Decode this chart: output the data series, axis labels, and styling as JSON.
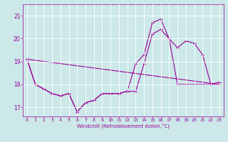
{
  "xlabel": "Windchill (Refroidissement éolien,°C)",
  "background_color": "#cce8e8",
  "grid_color": "#ffffff",
  "line_color": "#990099",
  "xlim": [
    -0.5,
    23.5
  ],
  "ylim": [
    16.6,
    21.5
  ],
  "yticks": [
    17,
    18,
    19,
    20,
    21
  ],
  "xticks": [
    0,
    1,
    2,
    3,
    4,
    5,
    6,
    7,
    8,
    9,
    10,
    11,
    12,
    13,
    14,
    15,
    16,
    17,
    18,
    19,
    20,
    21,
    22,
    23
  ],
  "line1_x": [
    0,
    1,
    2,
    3,
    4,
    5,
    6,
    7,
    8,
    9,
    10,
    11,
    12,
    13,
    14,
    15,
    16,
    17,
    18,
    19,
    20,
    21,
    22,
    23
  ],
  "line1_y": [
    19.1,
    18.0,
    17.8,
    17.6,
    17.5,
    17.6,
    16.8,
    17.2,
    17.3,
    17.6,
    17.6,
    17.6,
    17.7,
    17.7,
    18.9,
    20.2,
    20.4,
    20.0,
    18.0,
    18.0,
    18.0,
    18.0,
    18.0,
    18.0
  ],
  "line2_x": [
    0,
    1,
    2,
    3,
    4,
    5,
    6,
    7,
    8,
    9,
    10,
    11,
    12,
    13,
    14,
    15,
    16,
    17,
    18,
    19,
    20,
    21,
    22,
    23
  ],
  "line2_y": [
    19.1,
    18.0,
    17.8,
    17.6,
    17.5,
    17.6,
    16.8,
    17.2,
    17.3,
    17.6,
    17.6,
    17.6,
    17.7,
    18.9,
    19.3,
    20.7,
    20.85,
    20.0,
    19.6,
    19.9,
    19.8,
    19.3,
    18.0,
    18.1
  ],
  "line3_x": [
    0,
    23
  ],
  "line3_y": [
    19.1,
    18.0
  ]
}
